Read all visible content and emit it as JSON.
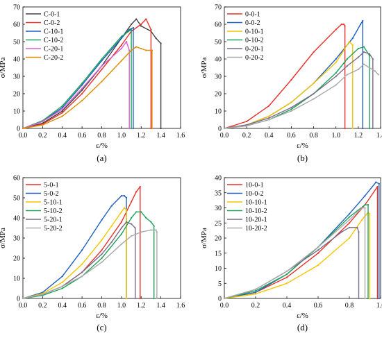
{
  "chart_data": [
    {
      "type": "line",
      "panel_label": "(a)",
      "xlabel": "ε/%",
      "ylabel": "σ/MPa",
      "xlim": [
        0.0,
        1.6
      ],
      "ylim": [
        0,
        70
      ],
      "xticks": [
        "0.0",
        "0.2",
        "0.4",
        "0.6",
        "0.8",
        "1.0",
        "1.2",
        "1.4",
        "1.6"
      ],
      "yticks": [
        "0",
        "10",
        "20",
        "30",
        "40",
        "50",
        "60",
        "70"
      ],
      "legend_position": "top-left",
      "series": [
        {
          "name": "C-0-1",
          "color": "#404040",
          "x": [
            0,
            0.2,
            0.4,
            0.6,
            0.8,
            1.0,
            1.1,
            1.15,
            1.2,
            1.3,
            1.35,
            1.4,
            1.4
          ],
          "y": [
            0,
            3,
            10,
            22,
            36,
            52,
            60,
            63,
            59,
            56,
            52,
            49,
            0
          ]
        },
        {
          "name": "C-0-2",
          "color": "#e8302a",
          "x": [
            0,
            0.2,
            0.4,
            0.6,
            0.8,
            1.0,
            1.1,
            1.2,
            1.25,
            1.3,
            1.3
          ],
          "y": [
            0,
            2.5,
            9,
            20,
            34,
            48,
            56,
            60,
            63,
            57,
            0
          ]
        },
        {
          "name": "C-10-1",
          "color": "#1f5fbf",
          "x": [
            0,
            0.2,
            0.4,
            0.6,
            0.8,
            1.0,
            1.08,
            1.12,
            1.12
          ],
          "y": [
            0,
            4,
            12,
            25,
            39,
            52,
            57,
            58,
            0
          ]
        },
        {
          "name": "C-10-2",
          "color": "#1fa35a",
          "x": [
            0,
            0.2,
            0.4,
            0.6,
            0.8,
            1.0,
            1.1,
            1.1
          ],
          "y": [
            0,
            4.5,
            13,
            26,
            40,
            53,
            57,
            0
          ]
        },
        {
          "name": "C-20-1",
          "color": "#d860d0",
          "x": [
            0,
            0.2,
            0.4,
            0.6,
            0.8,
            1.0,
            1.05,
            1.08,
            1.08
          ],
          "y": [
            0,
            4,
            11,
            23,
            36,
            46,
            50,
            45,
            0
          ]
        },
        {
          "name": "C-20-2",
          "color": "#e08a00",
          "x": [
            0,
            0.2,
            0.4,
            0.6,
            0.8,
            1.0,
            1.1,
            1.15,
            1.2,
            1.25,
            1.31,
            1.31
          ],
          "y": [
            0,
            2,
            7,
            16,
            27,
            39,
            45,
            47,
            46,
            45,
            45,
            0
          ]
        }
      ]
    },
    {
      "type": "line",
      "panel_label": "(b)",
      "xlabel": "ε/%",
      "ylabel": "σ/MPa",
      "xlim": [
        0.0,
        1.4
      ],
      "ylim": [
        0,
        70
      ],
      "xticks": [
        "0.0",
        "0.2",
        "0.4",
        "0.6",
        "0.8",
        "1.0",
        "1.2",
        "1.4"
      ],
      "yticks": [
        "0",
        "10",
        "20",
        "30",
        "40",
        "50",
        "60",
        "70"
      ],
      "legend_position": "top-left",
      "series": [
        {
          "name": "0-0-1",
          "color": "#e8302a",
          "x": [
            0,
            0.2,
            0.4,
            0.6,
            0.8,
            1.0,
            1.05,
            1.07,
            1.08,
            1.08
          ],
          "y": [
            0,
            4,
            13,
            28,
            44,
            57,
            60,
            60,
            59,
            0
          ]
        },
        {
          "name": "0-0-2",
          "color": "#1f5fbf",
          "x": [
            0,
            0.2,
            0.4,
            0.6,
            0.8,
            1.0,
            1.15,
            1.22,
            1.24,
            1.24
          ],
          "y": [
            0,
            2,
            7,
            15,
            26,
            40,
            52,
            60,
            62,
            0
          ]
        },
        {
          "name": "0-10-1",
          "color": "#f2c500",
          "x": [
            0,
            0.2,
            0.4,
            0.6,
            0.8,
            1.0,
            1.08,
            1.12,
            1.15,
            1.15
          ],
          "y": [
            0,
            2,
            7,
            15,
            26,
            38,
            46,
            50,
            48,
            0
          ]
        },
        {
          "name": "0-10-2",
          "color": "#1fa35a",
          "x": [
            0,
            0.2,
            0.4,
            0.6,
            0.8,
            1.0,
            1.1,
            1.2,
            1.25,
            1.3,
            1.3
          ],
          "y": [
            0,
            1.5,
            5,
            11,
            20,
            32,
            40,
            46,
            47,
            42,
            0
          ]
        },
        {
          "name": "0-20-1",
          "color": "#7a6a8a",
          "x": [
            0,
            0.2,
            0.4,
            0.6,
            0.8,
            1.0,
            1.1,
            1.2,
            1.25,
            1.3,
            1.33,
            1.33
          ],
          "y": [
            0,
            2,
            6,
            12,
            20,
            30,
            36,
            41,
            44,
            43,
            40,
            0
          ]
        },
        {
          "name": "0-20-2",
          "color": "#aaaaaa",
          "x": [
            0,
            0.2,
            0.4,
            0.6,
            0.8,
            1.0,
            1.1,
            1.2,
            1.25,
            1.3,
            1.35,
            1.38
          ],
          "y": [
            0,
            1.5,
            5,
            10,
            17,
            25,
            31,
            34,
            37,
            35,
            33,
            31
          ]
        }
      ]
    },
    {
      "type": "line",
      "panel_label": "(c)",
      "xlabel": "ε/%",
      "ylabel": "σ/MPa",
      "xlim": [
        0.0,
        1.6
      ],
      "ylim": [
        0,
        60
      ],
      "xticks": [
        "0.0",
        "0.2",
        "0.4",
        "0.6",
        "0.8",
        "1.0",
        "1.2",
        "1.4",
        "1.6"
      ],
      "yticks": [
        "0",
        "10",
        "20",
        "30",
        "40",
        "50",
        "60"
      ],
      "legend_position": "top-left",
      "series": [
        {
          "name": "5-0-1",
          "color": "#e8302a",
          "x": [
            0,
            0.2,
            0.4,
            0.6,
            0.8,
            1.0,
            1.1,
            1.15,
            1.19,
            1.19
          ],
          "y": [
            0,
            2,
            6,
            13,
            24,
            38,
            48,
            53,
            55.5,
            0
          ]
        },
        {
          "name": "5-0-2",
          "color": "#1f5fbf",
          "x": [
            0,
            0.2,
            0.4,
            0.6,
            0.8,
            0.9,
            1.0,
            1.03,
            1.05,
            1.05
          ],
          "y": [
            0,
            3,
            11,
            24,
            39,
            46,
            51,
            51,
            50,
            0
          ]
        },
        {
          "name": "5-10-1",
          "color": "#f2c500",
          "x": [
            0,
            0.2,
            0.4,
            0.6,
            0.8,
            0.9,
            1.0,
            1.03,
            1.05,
            1.05
          ],
          "y": [
            0,
            2.5,
            8,
            17,
            29,
            36,
            43,
            45,
            44,
            0
          ]
        },
        {
          "name": "5-10-2",
          "color": "#1fa35a",
          "x": [
            0,
            0.2,
            0.4,
            0.6,
            0.8,
            1.0,
            1.1,
            1.15,
            1.2,
            1.25,
            1.3,
            1.33,
            1.33
          ],
          "y": [
            0,
            1.5,
            5,
            11,
            20,
            32,
            40,
            43,
            43,
            40,
            38,
            36,
            0
          ]
        },
        {
          "name": "5-20-1",
          "color": "#7a6a8a",
          "x": [
            0,
            0.2,
            0.4,
            0.6,
            0.8,
            0.9,
            1.0,
            1.05,
            1.1,
            1.14,
            1.14
          ],
          "y": [
            0,
            2,
            6,
            13,
            22,
            28,
            35,
            38,
            37,
            35,
            0
          ]
        },
        {
          "name": "5-20-2",
          "color": "#aaaaaa",
          "x": [
            0,
            0.2,
            0.4,
            0.6,
            0.8,
            1.0,
            1.1,
            1.2,
            1.3,
            1.35,
            1.36,
            1.36
          ],
          "y": [
            0,
            2,
            6,
            11,
            18,
            27,
            31,
            33,
            34,
            34,
            33,
            0
          ]
        }
      ]
    },
    {
      "type": "line",
      "panel_label": "(d)",
      "xlabel": "ε/%",
      "ylabel": "σ/MPa",
      "xlim": [
        0.0,
        1.0
      ],
      "ylim": [
        0,
        40
      ],
      "xticks": [
        "0.0",
        "0.2",
        "0.4",
        "0.6",
        "0.8",
        "1.0"
      ],
      "yticks": [
        "0",
        "5",
        "10",
        "15",
        "20",
        "25",
        "30",
        "35",
        "40"
      ],
      "legend_position": "top-left",
      "series": [
        {
          "name": "10-0-1",
          "color": "#e8302a",
          "x": [
            0,
            0.2,
            0.4,
            0.6,
            0.8,
            0.9,
            0.98,
            0.98
          ],
          "y": [
            0,
            2,
            7,
            15,
            25,
            31,
            37,
            0
          ]
        },
        {
          "name": "10-0-2",
          "color": "#1f5fbf",
          "x": [
            0,
            0.2,
            0.4,
            0.6,
            0.8,
            0.9,
            0.97,
            0.99,
            0.99
          ],
          "y": [
            0,
            2,
            8,
            17,
            28,
            34,
            38.5,
            38,
            0
          ]
        },
        {
          "name": "10-10-1",
          "color": "#f2c500",
          "x": [
            0,
            0.2,
            0.4,
            0.6,
            0.8,
            0.88,
            0.92,
            0.93,
            0.93
          ],
          "y": [
            0,
            1.5,
            5,
            11,
            20,
            26,
            28.5,
            28,
            0
          ]
        },
        {
          "name": "10-10-2",
          "color": "#1fa35a",
          "x": [
            0,
            0.2,
            0.4,
            0.6,
            0.8,
            0.9,
            0.92,
            0.92
          ],
          "y": [
            0,
            2.5,
            8,
            17,
            27,
            31,
            31,
            0
          ]
        },
        {
          "name": "10-20-1",
          "color": "#7a6a8a",
          "x": [
            0,
            0.2,
            0.4,
            0.6,
            0.75,
            0.8,
            0.85,
            0.86,
            0.86
          ],
          "y": [
            0,
            3,
            9,
            16,
            22,
            23.5,
            23.5,
            22,
            0
          ]
        },
        {
          "name": "10-20-2",
          "color": "#aaaaaa",
          "x": [
            0,
            0.2,
            0.4,
            0.6,
            0.8,
            0.88,
            0.9,
            0.9
          ],
          "y": [
            0,
            3,
            9,
            17,
            26,
            30,
            30,
            0
          ]
        }
      ]
    }
  ]
}
